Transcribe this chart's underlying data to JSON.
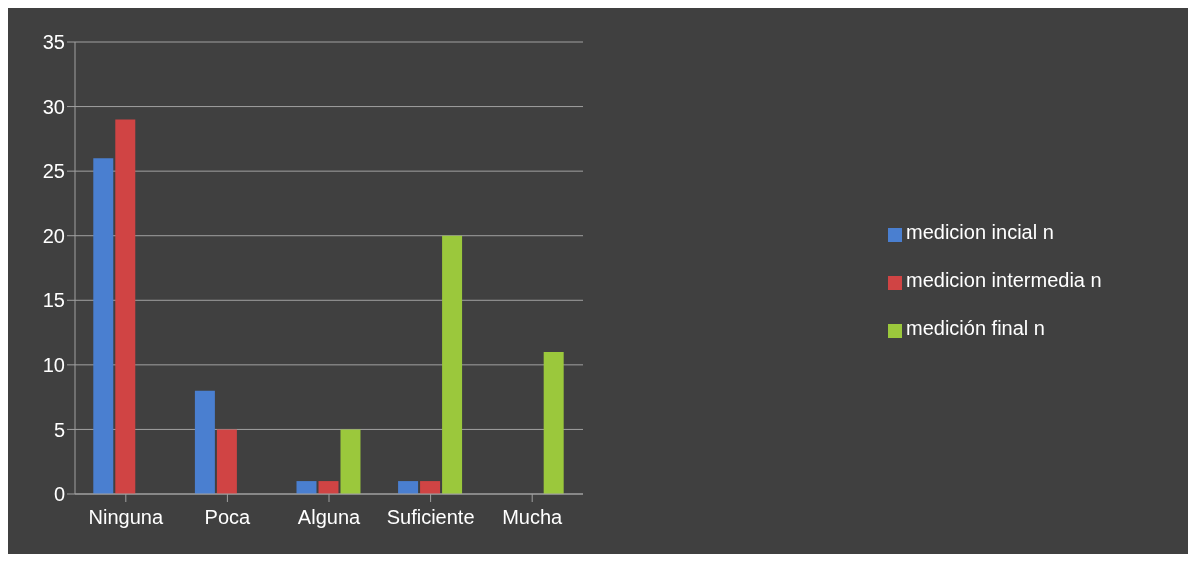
{
  "chart_data": {
    "type": "bar",
    "categories": [
      "Ninguna",
      "Poca",
      "Alguna",
      "Suficiente",
      "Mucha"
    ],
    "series": [
      {
        "name": "medicion incial n",
        "color": "#4a7fd0",
        "values": [
          26,
          8,
          1,
          1,
          null
        ]
      },
      {
        "name": "medicion intermedia n",
        "color": "#d04444",
        "values": [
          29,
          5,
          1,
          1,
          null
        ]
      },
      {
        "name": "medición final n",
        "color": "#9bc83c",
        "values": [
          null,
          null,
          5,
          20,
          11
        ]
      }
    ],
    "ylim": [
      0,
      35
    ],
    "yticks": [
      0,
      5,
      10,
      15,
      20,
      25,
      30,
      35
    ],
    "grid": "y",
    "legend": "right"
  }
}
